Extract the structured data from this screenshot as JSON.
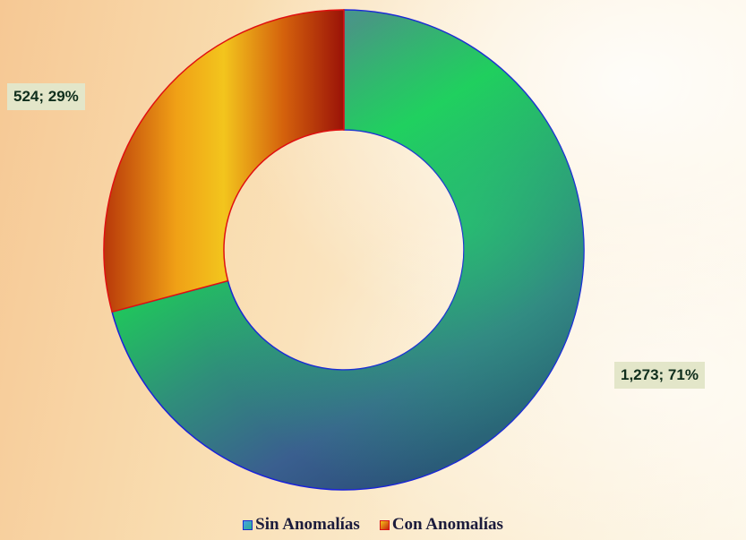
{
  "chart_data": {
    "type": "pie",
    "donut": true,
    "title": "",
    "categories": [
      "Sin Anomalías",
      "Con Anomalías"
    ],
    "values": [
      1273,
      524
    ],
    "percentages": [
      71,
      29
    ],
    "data_labels": [
      "1,273; 71%",
      "524; 29%"
    ],
    "colors": {
      "Sin Anomalías": "#2e9f6e",
      "Con Anomalías": "#d9650f"
    },
    "outlines": {
      "Sin Anomalías": "#1a22d8",
      "Con Anomalías": "#e01010"
    },
    "legend_position": "bottom"
  }
}
